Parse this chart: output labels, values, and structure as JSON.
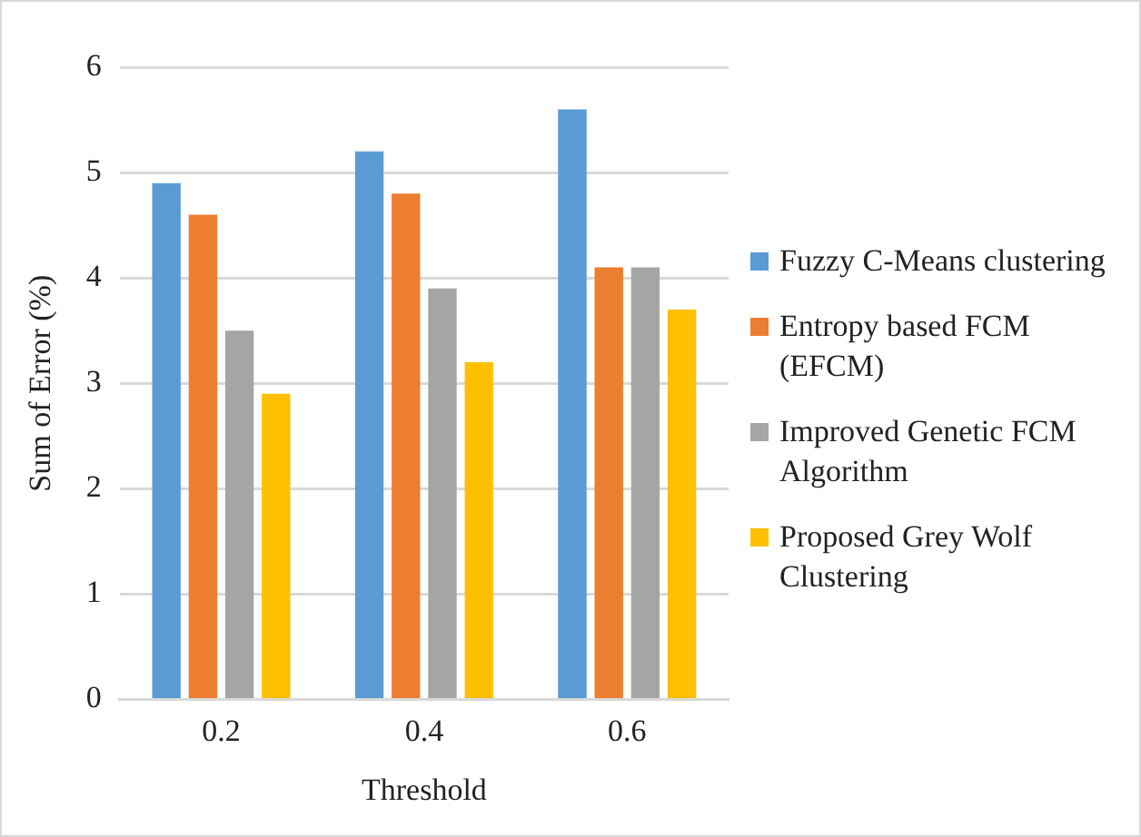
{
  "chart_data": {
    "type": "bar",
    "xlabel": "Threshold",
    "ylabel": "Sum of Error (%)",
    "categories": [
      "0.2",
      "0.4",
      "0.6"
    ],
    "series": [
      {
        "name": "Fuzzy C-Means clustering",
        "color": "#5b9bd5",
        "values": [
          4.9,
          5.2,
          5.6
        ]
      },
      {
        "name": "Entropy based FCM (EFCM)",
        "color": "#ed7d31",
        "values": [
          4.6,
          4.8,
          4.1
        ]
      },
      {
        "name": "Improved Genetic FCM Algorithm",
        "color": "#a5a5a5",
        "values": [
          3.5,
          3.9,
          4.1
        ]
      },
      {
        "name": "Proposed Grey Wolf Clustering",
        "color": "#ffc000",
        "values": [
          2.9,
          3.2,
          3.7
        ]
      }
    ],
    "ylim": [
      0,
      6
    ],
    "yticks": [
      0,
      1,
      2,
      3,
      4,
      5,
      6
    ],
    "grid": "y",
    "legend": "right"
  }
}
